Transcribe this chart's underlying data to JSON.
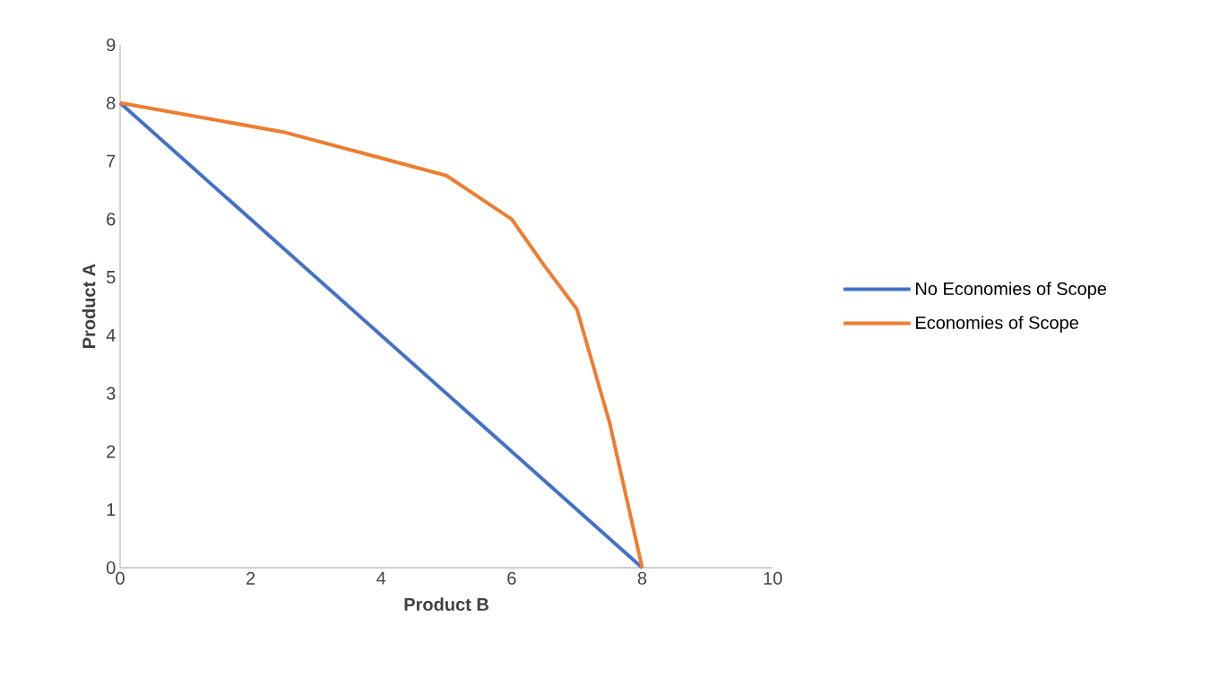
{
  "chart_data": {
    "type": "line",
    "xlabel": "Product B",
    "ylabel": "Product A",
    "xlim": [
      0,
      10
    ],
    "xticks": [
      0,
      2,
      4,
      6,
      8,
      10
    ],
    "ylim": [
      0,
      9
    ],
    "yticks": [
      0,
      1,
      2,
      3,
      4,
      5,
      6,
      7,
      8,
      9
    ],
    "legend": "right",
    "grid": false,
    "marker": "none",
    "line_style": "solid",
    "series": [
      {
        "name": "No Economies of Scope",
        "color": "#4472c4",
        "x": [
          0,
          8
        ],
        "values": [
          8,
          0
        ]
      },
      {
        "name": "Economies of Scope",
        "color": "#ed7d31",
        "x": [
          0,
          2.5,
          4,
          5,
          6,
          6.5,
          7,
          7.5,
          8
        ],
        "values": [
          8,
          7.5,
          7.05,
          6.75,
          6,
          5.2,
          4.45,
          2.5,
          0
        ]
      }
    ]
  }
}
